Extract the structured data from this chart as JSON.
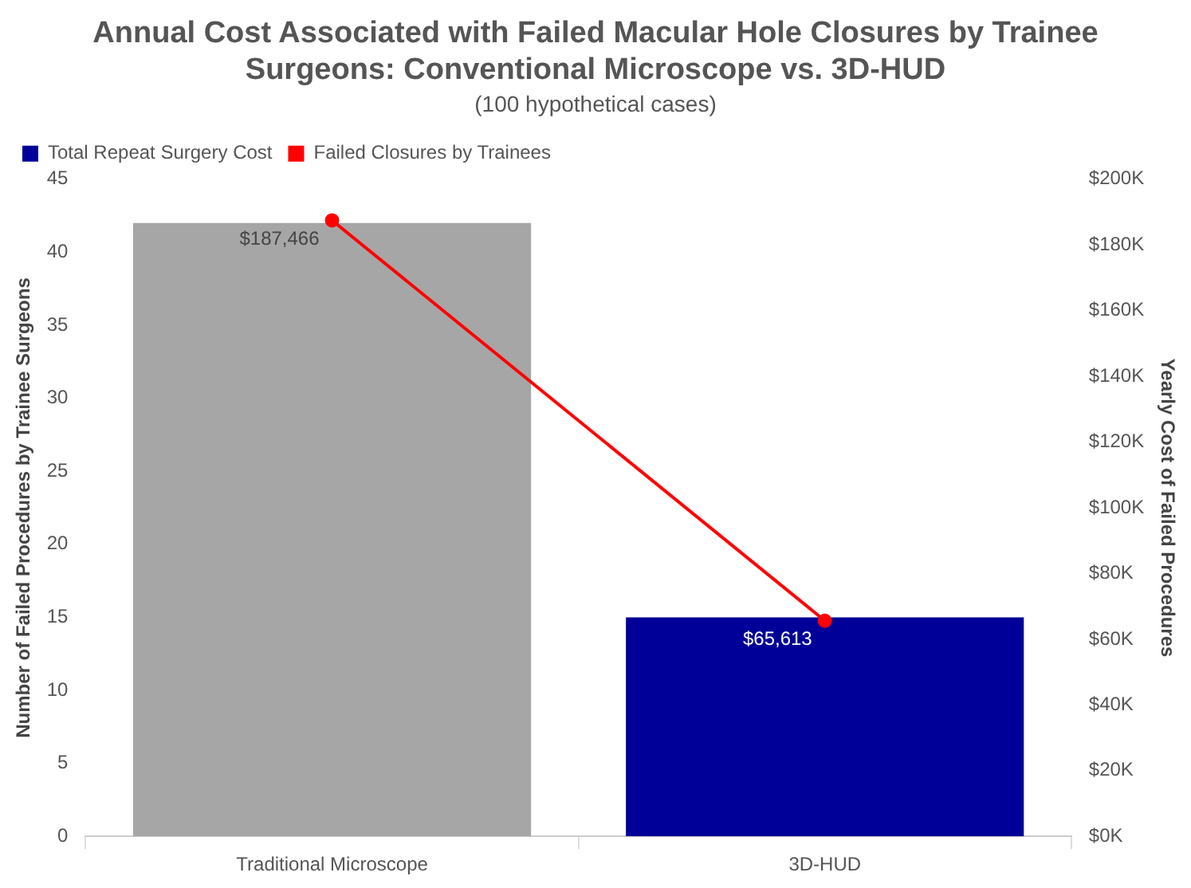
{
  "chart_data": {
    "type": "bar",
    "title": "Annual Cost Associated with Failed Macular Hole Closures by Trainee Surgeons: Conventional Microscope vs. 3D-HUD",
    "subtitle": "(100 hypothetical cases)",
    "ylabel": "Number of Failed Procedures by Trainee Surgeons",
    "y2label": "Yearly Cost of Failed Procedures",
    "categories": [
      "Traditional Microscope",
      "3D-HUD"
    ],
    "series": [
      {
        "name": "Total Repeat Surgery Cost",
        "color": "#000099",
        "colors": [
          "#a6a6a6",
          "#000099"
        ],
        "values": [
          42,
          15
        ]
      },
      {
        "name": "Failed Closures by Trainees",
        "type": "line",
        "axis": "y2",
        "color": "#ff0000",
        "values": [
          187466,
          65613
        ],
        "value_labels": [
          "$187,466",
          "$65,613"
        ]
      }
    ],
    "ylim": [
      0,
      45
    ],
    "yticks": [
      0,
      5,
      10,
      15,
      20,
      25,
      30,
      35,
      40,
      45
    ],
    "y2lim": [
      0,
      200000
    ],
    "y2ticks": [
      {
        "value": 0,
        "label": "$0K"
      },
      {
        "value": 20000,
        "label": "$20K"
      },
      {
        "value": 40000,
        "label": "$40K"
      },
      {
        "value": 60000,
        "label": "$60K"
      },
      {
        "value": 80000,
        "label": "$80K"
      },
      {
        "value": 100000,
        "label": "$100K"
      },
      {
        "value": 120000,
        "label": "$120K"
      },
      {
        "value": 140000,
        "label": "$140K"
      },
      {
        "value": 160000,
        "label": "$160K"
      },
      {
        "value": 180000,
        "label": "$180K"
      },
      {
        "value": 200000,
        "label": "$200K"
      }
    ],
    "legend": "top",
    "grid": false,
    "marker": "circle"
  }
}
